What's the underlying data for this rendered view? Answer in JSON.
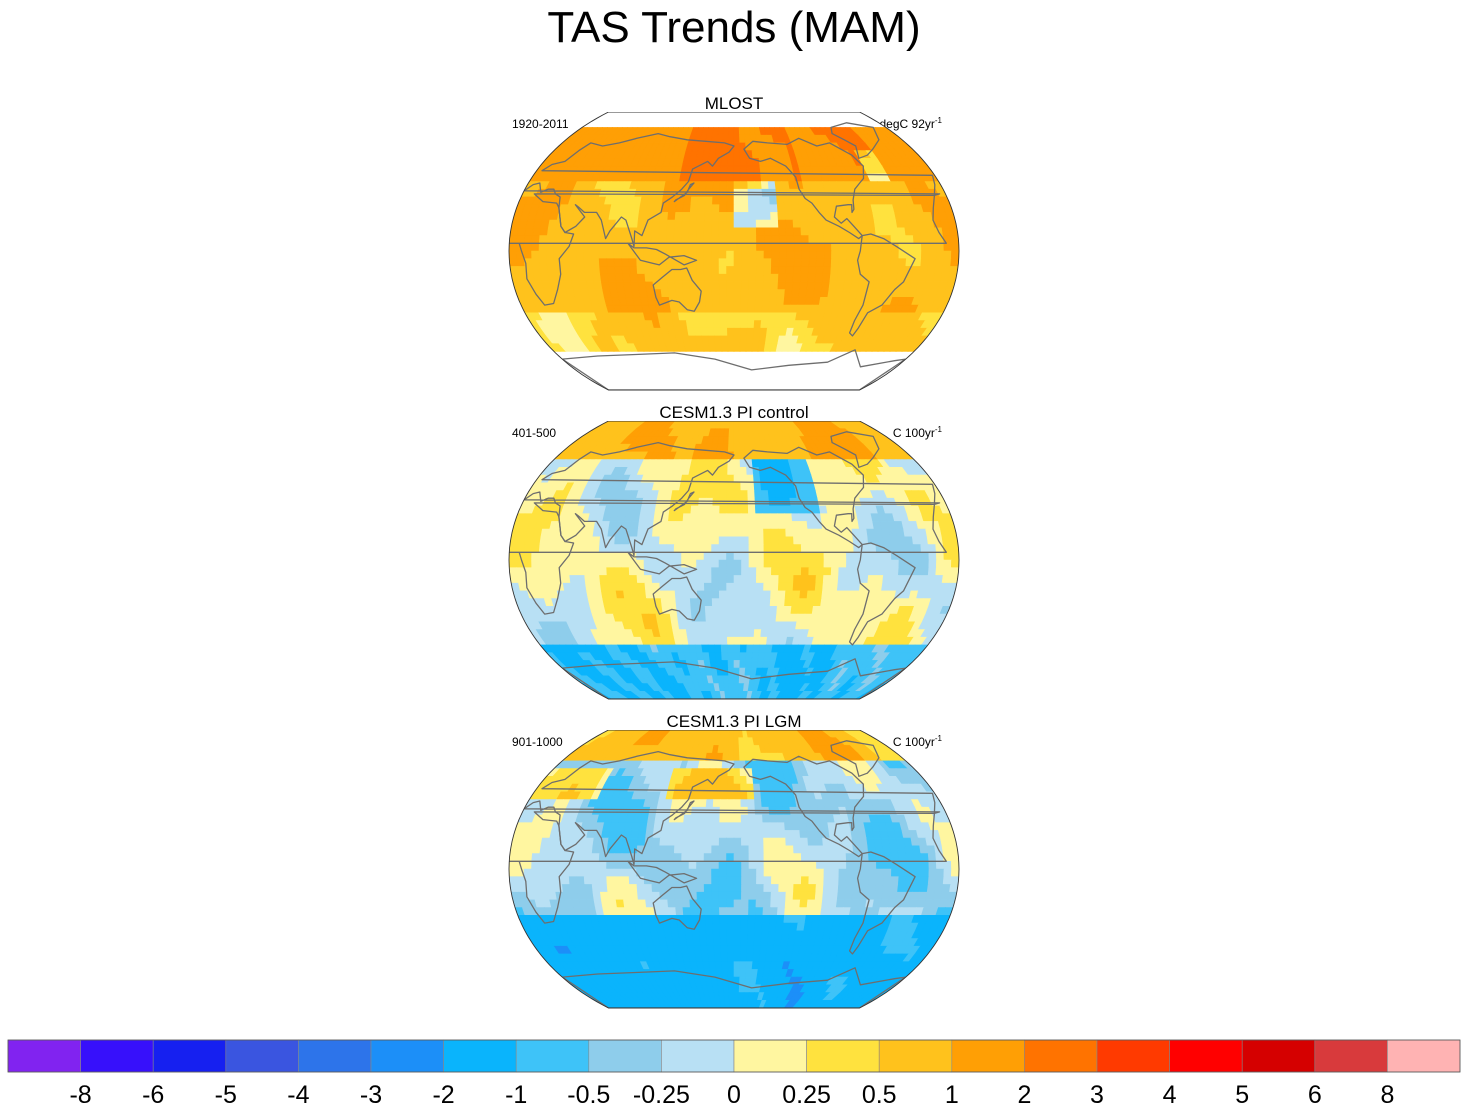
{
  "title": "TAS Trends (MAM)",
  "panels": [
    {
      "title": "MLOST",
      "period": "1920-2011",
      "units_prefix": "degC 92yr",
      "units_exp": "-1",
      "scheme": "warm"
    },
    {
      "title": "CESM1.3 PI control",
      "period": "401-500",
      "units_prefix": "C 100yr",
      "units_exp": "-1",
      "scheme": "control"
    },
    {
      "title": "CESM1.3 PI LGM",
      "period": "901-1000",
      "units_prefix": "C 100yr",
      "units_exp": "-1",
      "scheme": "lgm"
    }
  ],
  "chart_data": {
    "type": "heatmap",
    "title": "TAS Trends (MAM)",
    "projection": "Robinson, Pacific-centered",
    "colorbar": {
      "levels": [
        "-8",
        "-6",
        "-5",
        "-4",
        "-3",
        "-2",
        "-1",
        "-0.5",
        "-0.25",
        "0",
        "0.25",
        "0.5",
        "1",
        "2",
        "3",
        "4",
        "5",
        "6",
        "8"
      ],
      "colors": [
        "#8123f0",
        "#3710fb",
        "#1620f0",
        "#3a55e0",
        "#2d74ea",
        "#1c8ff8",
        "#0ab4fc",
        "#3ec3f8",
        "#8ecdeb",
        "#b8e0f4",
        "#fff6a0",
        "#ffe23e",
        "#ffc21c",
        "#ff9f05",
        "#ff7300",
        "#ff3a00",
        "#ff0000",
        "#d50000",
        "#d83a3c",
        "#ffb3b3"
      ]
    }
  }
}
